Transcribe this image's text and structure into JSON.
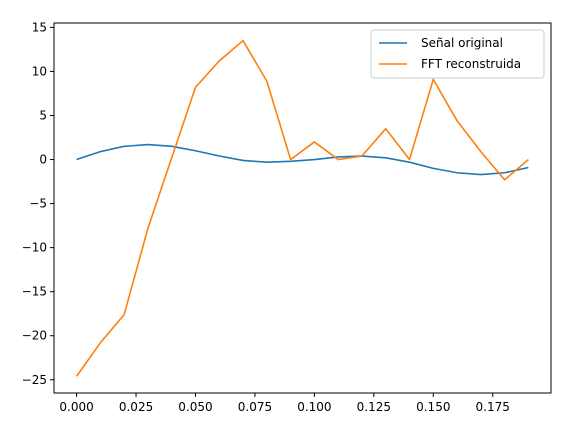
{
  "colors": {
    "series_1": "#1f77b4",
    "series_2": "#ff7f0e",
    "axis": "#000000",
    "legend_border": "#cccccc"
  },
  "chart_data": {
    "type": "line",
    "title": "",
    "xlabel": "",
    "ylabel": "",
    "xlim": [
      -0.0095,
      0.1995
    ],
    "ylim": [
      -26.5,
      15.5
    ],
    "grid": false,
    "legend_position": "top-right",
    "x_ticks": [
      0.0,
      0.025,
      0.05,
      0.075,
      0.1,
      0.125,
      0.15,
      0.175
    ],
    "x_tick_labels": [
      "0.000",
      "0.025",
      "0.050",
      "0.075",
      "0.100",
      "0.125",
      "0.150",
      "0.175"
    ],
    "y_ticks": [
      15,
      10,
      5,
      0,
      -5,
      -10,
      -15,
      -20,
      -25
    ],
    "y_tick_labels": [
      "15",
      "10",
      "5",
      "0",
      "−5",
      "−10",
      "−15",
      "−20",
      "−25"
    ],
    "x": [
      0.0,
      0.01,
      0.02,
      0.03,
      0.04,
      0.05,
      0.06,
      0.07,
      0.08,
      0.09,
      0.1,
      0.11,
      0.12,
      0.13,
      0.14,
      0.15,
      0.16,
      0.17,
      0.18,
      0.19
    ],
    "series": [
      {
        "name": "Señal original",
        "color": "#1f77b4",
        "values": [
          0.0,
          0.9,
          1.5,
          1.7,
          1.5,
          1.0,
          0.4,
          -0.1,
          -0.3,
          -0.2,
          0.0,
          0.3,
          0.4,
          0.2,
          -0.3,
          -1.0,
          -1.5,
          -1.7,
          -1.5,
          -0.9
        ]
      },
      {
        "name": "FFT reconstruida",
        "color": "#ff7f0e",
        "values": [
          -24.6,
          -20.8,
          -17.6,
          -7.8,
          0.2,
          8.2,
          11.2,
          13.5,
          8.9,
          0.0,
          2.0,
          0.0,
          0.4,
          3.5,
          0.0,
          9.1,
          4.4,
          0.9,
          -2.3,
          0.0
        ]
      }
    ]
  }
}
